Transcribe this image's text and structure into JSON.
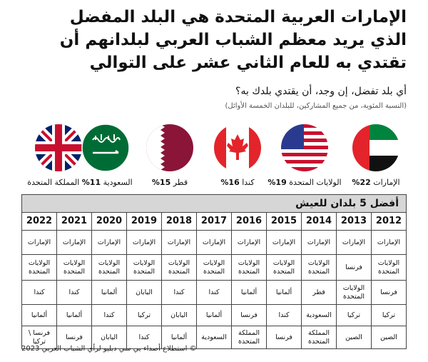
{
  "header": {
    "title": "الإمارات العربية المتحدة هي البلد المفضل الذي يريد معظم الشباب العربي لبلدانهم أن تقتدي به للعام الثاني عشر على التوالي",
    "question": "أي بلد تفضل، إن وجد، أن يقتدي بلدك به؟",
    "note": "(النسبة المئوية، من جميع المشاركين، للبلدان الخمسة الأوائل)"
  },
  "flags": [
    {
      "name": "الإمارات",
      "percent": "22%"
    },
    {
      "name": "الولايات المتحدة",
      "percent": "19%"
    },
    {
      "name": "كندا",
      "percent": "16%"
    },
    {
      "name": "قطر",
      "percent": "15%"
    },
    {
      "name": "السعودية",
      "percent": "11%",
      "name2": "المملكة المتحدة"
    }
  ],
  "table": {
    "title": "أفضل 5 بلدان للعيش",
    "years": [
      "2012",
      "2013",
      "2014",
      "2015",
      "2016",
      "2017",
      "2018",
      "2019",
      "2020",
      "2021",
      "2022"
    ],
    "rows": [
      [
        "الإمارات",
        "الإمارات",
        "الإمارات",
        "الإمارات",
        "الإمارات",
        "الإمارات",
        "الإمارات",
        "الإمارات",
        "الإمارات",
        "الإمارات",
        "الإمارات"
      ],
      [
        "الولايات المتحدة",
        "فرنسا",
        "الولايات المتحدة",
        "الولايات المتحدة",
        "الولايات المتحدة",
        "الولايات المتحدة",
        "الولايات المتحدة",
        "الولايات المتحدة",
        "الولايات المتحدة",
        "الولايات المتحدة",
        "الولايات المتحدة"
      ],
      [
        "فرنسا",
        "الولايات المتحدة",
        "قطر",
        "ألمانيا",
        "ألمانيا",
        "كندا",
        "كندا",
        "اليابان",
        "ألمانيا",
        "كندا",
        "كندا"
      ],
      [
        "تركيا",
        "تركيا",
        "السعودية",
        "كندا",
        "فرنسا",
        "ألمانيا",
        "اليابان",
        "تركيا",
        "كندا",
        "ألمانيا",
        "ألمانيا"
      ],
      [
        "الصين",
        "الصين",
        "المملكة المتحدة",
        "فرنسا",
        "المملكة المتحدة",
        "السعودية",
        "ألمانيا",
        "كندا",
        "اليابان",
        "فرنسا",
        "فرنسا \\ تركيا"
      ]
    ]
  },
  "footer": "© استطلاع أصداء بي سي دبليو لرأي الشباب العربي 2023"
}
